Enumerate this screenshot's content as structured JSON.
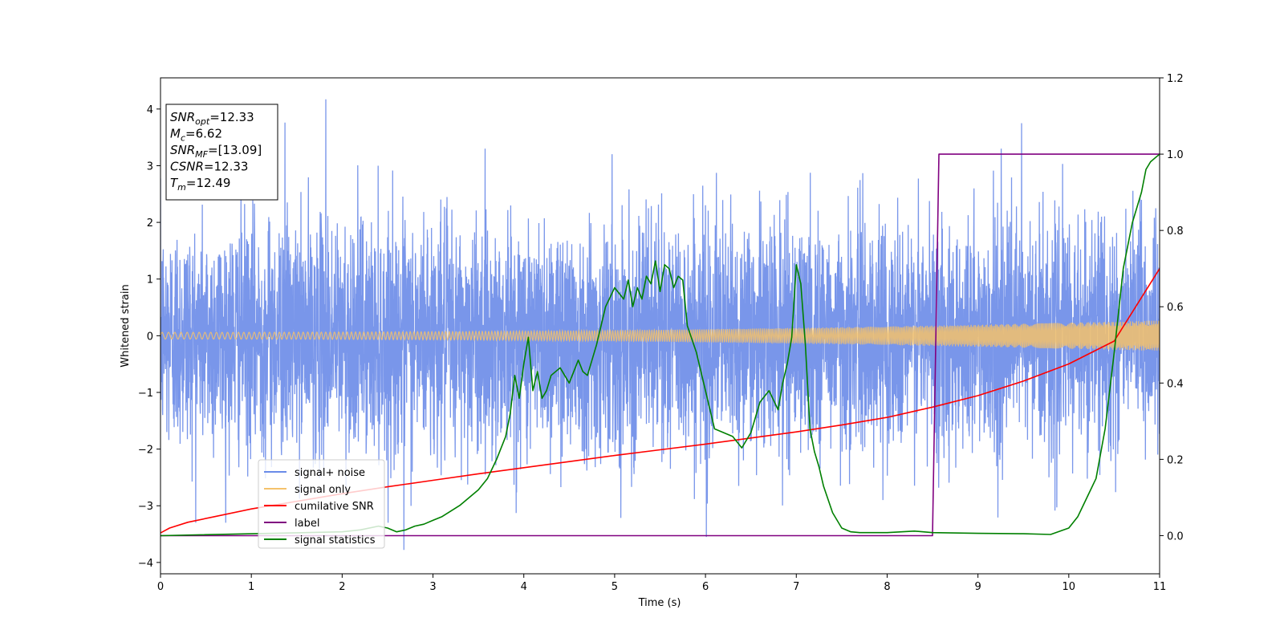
{
  "chart_data": {
    "type": "line",
    "xlabel": "Time (s)",
    "ylabel": "Whitened strain",
    "xlim": [
      0,
      11
    ],
    "ylim_left": [
      -4.2,
      4.55
    ],
    "ylim_right": [
      -0.1,
      1.2
    ],
    "xticks": [
      "0",
      "1",
      "2",
      "3",
      "4",
      "5",
      "6",
      "7",
      "8",
      "9",
      "10",
      "11"
    ],
    "yticks_left": [
      "−4",
      "−3",
      "−2",
      "−1",
      "0",
      "1",
      "2",
      "3",
      "4"
    ],
    "yticks_right": [
      "0.0",
      "0.2",
      "0.4",
      "0.6",
      "0.8",
      "1.0",
      "1.2"
    ],
    "grid": false,
    "legend_position": "lower-left",
    "series": [
      {
        "name": "signal+ noise",
        "axis": "left",
        "color": "#6a8be8",
        "description_values": {
          "mean": 0,
          "approx_std": 1.0,
          "approx_min": -3.8,
          "approx_max": 4.2,
          "time_range": [
            0,
            11
          ]
        },
        "peaks": [
          {
            "x": 1.82,
            "y": 4.17
          },
          {
            "x": 1.37,
            "y": 3.76
          },
          {
            "x": 9.48,
            "y": 3.75
          },
          {
            "x": 6.01,
            "y": -3.55
          },
          {
            "x": 2.68,
            "y": -3.78
          }
        ]
      },
      {
        "name": "signal only",
        "axis": "left",
        "color": "#f5c26b",
        "description_values": {
          "amplitude_start": 0.06,
          "amplitude_end": 0.27,
          "time_range": [
            0,
            11
          ]
        }
      },
      {
        "name": "cumilative SNR",
        "axis": "right",
        "color": "#ff0000",
        "x": [
          0,
          0.1,
          0.3,
          0.6,
          1,
          1.5,
          2,
          2.5,
          3,
          3.5,
          4,
          4.5,
          5,
          5.5,
          6,
          6.5,
          7,
          7.5,
          8,
          8.5,
          9,
          9.5,
          10,
          10.5,
          11
        ],
        "values": [
          0.007,
          0.02,
          0.035,
          0.05,
          0.07,
          0.09,
          0.11,
          0.128,
          0.145,
          0.162,
          0.178,
          0.194,
          0.21,
          0.225,
          0.24,
          0.256,
          0.272,
          0.29,
          0.31,
          0.337,
          0.367,
          0.405,
          0.45,
          0.51,
          0.7
        ]
      },
      {
        "name": "label",
        "axis": "right",
        "color": "#800080",
        "x": [
          0,
          8.5,
          8.57,
          11
        ],
        "values": [
          0,
          0,
          1,
          1
        ]
      },
      {
        "name": "signal statistics",
        "axis": "right",
        "color": "#008000",
        "x": [
          0,
          2.0,
          2.2,
          2.4,
          2.5,
          2.6,
          2.7,
          2.8,
          2.9,
          3.0,
          3.1,
          3.2,
          3.3,
          3.4,
          3.5,
          3.6,
          3.7,
          3.8,
          3.85,
          3.9,
          3.95,
          4.0,
          4.05,
          4.1,
          4.15,
          4.2,
          4.25,
          4.3,
          4.4,
          4.5,
          4.6,
          4.65,
          4.7,
          4.8,
          4.9,
          5.0,
          5.1,
          5.15,
          5.2,
          5.25,
          5.3,
          5.35,
          5.4,
          5.45,
          5.5,
          5.55,
          5.6,
          5.65,
          5.7,
          5.75,
          5.8,
          5.9,
          6.0,
          6.1,
          6.2,
          6.3,
          6.4,
          6.5,
          6.6,
          6.7,
          6.8,
          6.85,
          6.9,
          6.95,
          7.0,
          7.05,
          7.1,
          7.15,
          7.2,
          7.25,
          7.3,
          7.4,
          7.5,
          7.6,
          7.7,
          8.0,
          8.3,
          8.5,
          9.0,
          9.5,
          9.8,
          10.0,
          10.1,
          10.2,
          10.3,
          10.4,
          10.5,
          10.6,
          10.7,
          10.8,
          10.85,
          10.9,
          10.95,
          11.0
        ],
        "values": [
          0.0,
          0.01,
          0.015,
          0.025,
          0.02,
          0.01,
          0.015,
          0.025,
          0.03,
          0.04,
          0.05,
          0.065,
          0.08,
          0.1,
          0.12,
          0.15,
          0.2,
          0.26,
          0.32,
          0.42,
          0.36,
          0.45,
          0.52,
          0.38,
          0.43,
          0.36,
          0.38,
          0.42,
          0.44,
          0.4,
          0.46,
          0.43,
          0.42,
          0.5,
          0.6,
          0.65,
          0.62,
          0.67,
          0.6,
          0.65,
          0.62,
          0.68,
          0.66,
          0.72,
          0.64,
          0.71,
          0.7,
          0.65,
          0.68,
          0.67,
          0.55,
          0.48,
          0.38,
          0.28,
          0.27,
          0.26,
          0.23,
          0.27,
          0.35,
          0.38,
          0.33,
          0.4,
          0.45,
          0.52,
          0.71,
          0.66,
          0.5,
          0.28,
          0.22,
          0.18,
          0.13,
          0.06,
          0.02,
          0.01,
          0.008,
          0.008,
          0.012,
          0.008,
          0.006,
          0.005,
          0.003,
          0.02,
          0.05,
          0.1,
          0.15,
          0.28,
          0.48,
          0.7,
          0.82,
          0.9,
          0.96,
          0.98,
          0.99,
          1.0
        ]
      }
    ],
    "annotations": [
      {
        "label_main": "SNR",
        "label_sub": "opt",
        "value": "=12.33"
      },
      {
        "label_main": "M",
        "label_sub": "c",
        "value": "=6.62"
      },
      {
        "label_main": "SNR",
        "label_sub": "MF",
        "value": "=[13.09]"
      },
      {
        "label_main": "CSNR",
        "label_sub": "",
        "value": "=12.33"
      },
      {
        "label_main": "T",
        "label_sub": "m",
        "value": "=12.49"
      }
    ]
  }
}
